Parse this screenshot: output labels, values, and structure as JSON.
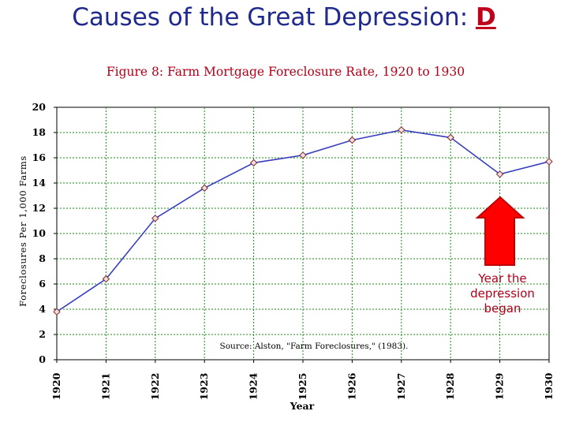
{
  "slide": {
    "title_prefix": "Causes of the Great Depression: ",
    "title_letter": "D"
  },
  "annotation": {
    "text": "Year the depression began",
    "arrow_color": "#ff0000",
    "arrow_at_year": 1929
  },
  "chart_data": {
    "type": "line",
    "title": "Figure 8: Farm Mortgage Foreclosure Rate, 1920 to 1930",
    "xlabel": "Year",
    "ylabel": "Foreclosures Per 1,000 Farms",
    "x": [
      1920,
      1921,
      1922,
      1923,
      1924,
      1925,
      1926,
      1927,
      1928,
      1929,
      1930
    ],
    "x_tick_labels": [
      "1920",
      "1921",
      "1922",
      "1923",
      "1924",
      "1925",
      "1926",
      "1927",
      "1928",
      "1929",
      "1930"
    ],
    "series": [
      {
        "values": [
          3.8,
          6.4,
          11.2,
          13.6,
          15.6,
          16.2,
          17.4,
          18.2,
          17.6,
          14.7,
          15.7
        ]
      }
    ],
    "ylim": [
      0,
      20
    ],
    "y_ticks": [
      0,
      2,
      4,
      6,
      8,
      10,
      12,
      14,
      16,
      18,
      20
    ],
    "grid": true,
    "source_note": "Source: Alston, \"Farm Foreclosures,\" (1983).",
    "line_color": "#3a3fbf",
    "marker_fill": "#f3dede",
    "grid_color": "#1a8a1a",
    "title_color": "#b0001a"
  }
}
